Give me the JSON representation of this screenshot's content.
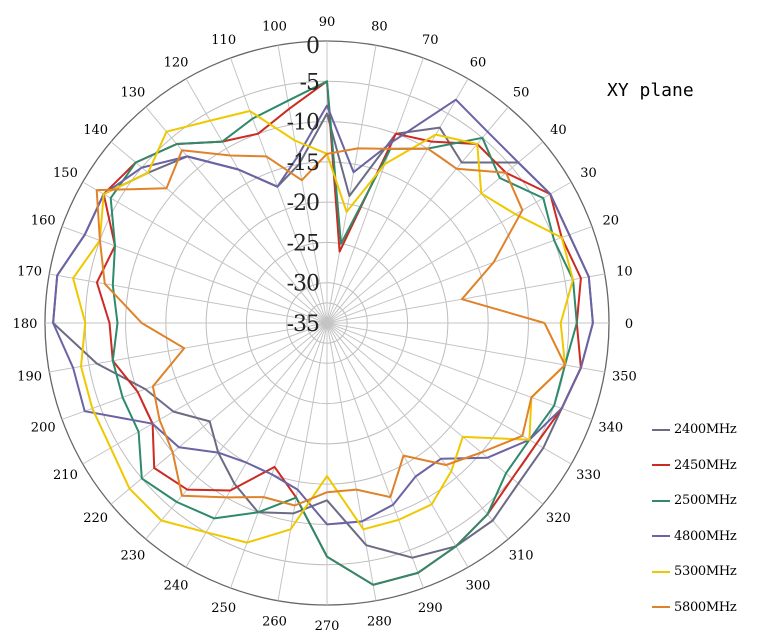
{
  "chart_data": {
    "type": "polar-line",
    "title": "XY plane",
    "angle_ticks": [
      "0",
      "10",
      "20",
      "30",
      "40",
      "50",
      "60",
      "70",
      "80",
      "90",
      "100",
      "110",
      "120",
      "130",
      "140",
      "150",
      "160",
      "170",
      "180",
      "190",
      "200",
      "210",
      "220",
      "230",
      "240",
      "250",
      "260",
      "270",
      "280",
      "290",
      "300",
      "310",
      "320",
      "330",
      "340",
      "350"
    ],
    "radial_ticks": [
      "0",
      "-5",
      "-10",
      "-15",
      "-20",
      "-25",
      "-30",
      "-35"
    ],
    "rlim": [
      -35,
      0
    ],
    "angles_deg": [
      0,
      10,
      20,
      30,
      40,
      50,
      60,
      70,
      80,
      90,
      100,
      110,
      120,
      130,
      140,
      150,
      160,
      170,
      180,
      190,
      200,
      210,
      220,
      230,
      240,
      250,
      260,
      270,
      280,
      290,
      300,
      310,
      320,
      330,
      340,
      350
    ],
    "series": [
      {
        "name": "2400MHz",
        "color": "#6b6b85",
        "values": [
          -2,
          -2,
          -3,
          -3,
          -4,
          -9,
          -7,
          -10,
          -19,
          -9,
          -15,
          -17,
          -13,
          -8,
          -6,
          -3,
          -3,
          -1,
          -1,
          -6,
          -11,
          -13,
          -16,
          -14,
          -12,
          -10,
          -11,
          -13,
          -7,
          -4,
          -3,
          -3,
          -4,
          -4,
          -4,
          -3
        ]
      },
      {
        "name": "2450MHz",
        "color": "#cc2a22",
        "values": [
          -4,
          -3,
          -4,
          -3,
          -6,
          -6,
          -9,
          -10,
          -26,
          -5,
          -8,
          -10,
          -9,
          -6,
          -4,
          -3,
          -7,
          -6,
          -8,
          -8,
          -10,
          -10,
          -7,
          -8,
          -11,
          -16,
          -13,
          -6,
          -2,
          -2,
          -3,
          -4,
          -5,
          -5,
          -4,
          -3
        ]
      },
      {
        "name": "2500MHz",
        "color": "#2d8a6a",
        "values": [
          -4,
          -4,
          -5,
          -4,
          -7,
          -5,
          -10,
          -12,
          -25,
          -5,
          -7,
          -8,
          -9,
          -6,
          -4,
          -4,
          -7,
          -8,
          -9,
          -8,
          -8,
          -8,
          -5,
          -6,
          -7,
          -10,
          -13,
          -6,
          -2,
          -2,
          -3,
          -4,
          -6,
          -6,
          -5,
          -5
        ]
      },
      {
        "name": "4800MHz",
        "color": "#6a64a4",
        "values": [
          -2,
          -2,
          -3,
          -3,
          -4,
          -4,
          -3,
          -11,
          -16,
          -8,
          -14,
          -17,
          -13,
          -8,
          -5,
          -3,
          -3,
          -1,
          -1,
          -3,
          -3,
          -10,
          -11,
          -14,
          -15,
          -15,
          -14,
          -10,
          -10,
          -11,
          -13,
          -13,
          -9,
          -6,
          -4,
          -3
        ]
      },
      {
        "name": "5300MHz",
        "color": "#f0c800",
        "values": [
          -6,
          -4,
          -4,
          -8,
          -10,
          -6,
          -8,
          -14,
          -21,
          -14,
          -12,
          -7,
          -6,
          -4,
          -6,
          -3,
          -5,
          -3,
          -5,
          -4,
          -4,
          -4,
          -3,
          -3,
          -5,
          -6,
          -9,
          -16,
          -9,
          -9,
          -9,
          -11,
          -13,
          -6,
          -8,
          -5
        ]
      },
      {
        "name": "5800MHz",
        "color": "#e0822a",
        "values": [
          -8,
          -18,
          -13,
          -7,
          -6,
          -10,
          -10,
          -12,
          -13,
          -14,
          -17,
          -13,
          -11,
          -7,
          -9,
          -2,
          -5,
          -7,
          -12,
          -17,
          -12,
          -11,
          -10,
          -7,
          -10,
          -12,
          -12,
          -14,
          -14,
          -12,
          -16,
          -12,
          -10,
          -7,
          -8,
          -5
        ]
      }
    ]
  }
}
